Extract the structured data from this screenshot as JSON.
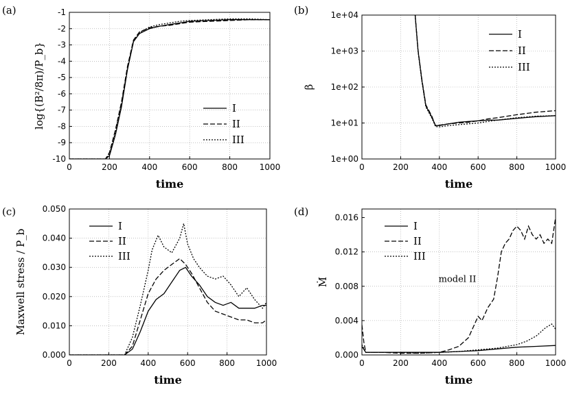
{
  "chart_data": [
    {
      "panel": "(a)",
      "type": "line",
      "xlabel": "time",
      "ylabel": "log{(B²/8π)/P_b}",
      "xlim": [
        0,
        1000
      ],
      "ylim": [
        -10,
        -1
      ],
      "xticks": [
        "0",
        "200",
        "400",
        "600",
        "800",
        "1000"
      ],
      "yticks": [
        "-10",
        "-9",
        "-8",
        "-7",
        "-6",
        "-5",
        "-4",
        "-3",
        "-2",
        "-1"
      ],
      "grid": true,
      "legend": "right",
      "series": [
        {
          "name": "I",
          "dash": "solid",
          "x": [
            0,
            150,
            180,
            200,
            230,
            260,
            290,
            320,
            350,
            400,
            450,
            500,
            550,
            600,
            700,
            800,
            900,
            1000
          ],
          "y": [
            -10,
            -10,
            -10,
            -9.8,
            -8.5,
            -6.8,
            -4.5,
            -2.8,
            -2.3,
            -2.0,
            -1.85,
            -1.75,
            -1.65,
            -1.55,
            -1.5,
            -1.45,
            -1.45,
            -1.45
          ]
        },
        {
          "name": "II",
          "dash": "dash",
          "x": [
            0,
            150,
            180,
            200,
            230,
            260,
            290,
            320,
            350,
            400,
            450,
            500,
            550,
            600,
            700,
            800,
            900,
            1000
          ],
          "y": [
            -10,
            -10,
            -10,
            -9.6,
            -8.2,
            -6.5,
            -4.3,
            -2.7,
            -2.2,
            -1.95,
            -1.85,
            -1.8,
            -1.7,
            -1.6,
            -1.55,
            -1.5,
            -1.45,
            -1.45
          ]
        },
        {
          "name": "III",
          "dash": "dot",
          "x": [
            0,
            150,
            180,
            200,
            230,
            260,
            290,
            320,
            350,
            400,
            450,
            500,
            550,
            600,
            700,
            800,
            900,
            1000
          ],
          "y": [
            -10,
            -10,
            -10,
            -9.7,
            -8.3,
            -6.6,
            -4.4,
            -2.75,
            -2.25,
            -1.9,
            -1.75,
            -1.65,
            -1.55,
            -1.5,
            -1.45,
            -1.4,
            -1.4,
            -1.45
          ]
        }
      ]
    },
    {
      "panel": "(b)",
      "type": "line",
      "yscale": "log",
      "xlabel": "time",
      "ylabel": "β",
      "xlim": [
        0,
        1000
      ],
      "ylim": [
        1,
        10000
      ],
      "xticks": [
        "0",
        "200",
        "400",
        "600",
        "800",
        "1000"
      ],
      "yticks": [
        "1e+00",
        "1e+01",
        "1e+02",
        "1e+03",
        "1e+04"
      ],
      "grid": true,
      "legend": "top-right",
      "series": [
        {
          "name": "I",
          "dash": "solid",
          "x": [
            275,
            290,
            310,
            330,
            360,
            380,
            400,
            450,
            500,
            550,
            600,
            650,
            700,
            800,
            900,
            1000
          ],
          "y": [
            10000,
            1000,
            150,
            30,
            15,
            8.5,
            8.5,
            9.5,
            10.5,
            11,
            11.5,
            12,
            12,
            13.5,
            15,
            16
          ]
        },
        {
          "name": "II",
          "dash": "dash",
          "x": [
            275,
            290,
            310,
            330,
            360,
            380,
            400,
            450,
            500,
            550,
            600,
            650,
            700,
            800,
            900,
            1000
          ],
          "y": [
            10000,
            1050,
            160,
            32,
            16,
            8.3,
            8.7,
            9.5,
            10,
            10.5,
            11.5,
            13,
            14,
            17,
            20,
            22
          ]
        },
        {
          "name": "III",
          "dash": "dot",
          "x": [
            275,
            290,
            310,
            330,
            360,
            380,
            400,
            450,
            500,
            550,
            600,
            650,
            700,
            800,
            900,
            1000
          ],
          "y": [
            10000,
            950,
            140,
            28,
            14,
            8,
            7.8,
            8.5,
            9,
            9.5,
            10,
            11,
            12,
            14,
            15.5,
            16
          ]
        }
      ]
    },
    {
      "panel": "(c)",
      "type": "line",
      "xlabel": "time",
      "ylabel": "Maxwell stress / P_b",
      "xlim": [
        0,
        1000
      ],
      "ylim": [
        0,
        0.05
      ],
      "xticks": [
        "0",
        "200",
        "400",
        "600",
        "800",
        "1000"
      ],
      "yticks": [
        "0.000",
        "0.010",
        "0.020",
        "0.030",
        "0.040",
        "0.050"
      ],
      "grid": true,
      "legend": "top-left",
      "series": [
        {
          "name": "I",
          "dash": "solid",
          "x": [
            0,
            280,
            320,
            360,
            400,
            440,
            480,
            520,
            560,
            590,
            620,
            660,
            700,
            740,
            780,
            820,
            860,
            900,
            940,
            980,
            1000
          ],
          "y": [
            0,
            0,
            0.002,
            0.008,
            0.015,
            0.019,
            0.021,
            0.025,
            0.029,
            0.03,
            0.027,
            0.024,
            0.02,
            0.018,
            0.017,
            0.018,
            0.016,
            0.016,
            0.016,
            0.017,
            0.017
          ]
        },
        {
          "name": "II",
          "dash": "dash",
          "x": [
            0,
            280,
            320,
            360,
            400,
            440,
            480,
            520,
            560,
            590,
            620,
            660,
            700,
            740,
            780,
            820,
            860,
            900,
            940,
            980,
            1000
          ],
          "y": [
            0,
            0,
            0.003,
            0.012,
            0.021,
            0.026,
            0.029,
            0.031,
            0.033,
            0.031,
            0.028,
            0.023,
            0.018,
            0.015,
            0.014,
            0.013,
            0.012,
            0.012,
            0.011,
            0.011,
            0.012
          ]
        },
        {
          "name": "III",
          "dash": "dot",
          "x": [
            0,
            280,
            320,
            360,
            400,
            420,
            450,
            480,
            520,
            560,
            580,
            600,
            630,
            660,
            700,
            740,
            780,
            820,
            860,
            900,
            940,
            980,
            1000
          ],
          "y": [
            0,
            0,
            0.006,
            0.017,
            0.029,
            0.036,
            0.041,
            0.037,
            0.035,
            0.04,
            0.045,
            0.038,
            0.033,
            0.03,
            0.027,
            0.026,
            0.027,
            0.024,
            0.02,
            0.023,
            0.019,
            0.016,
            0.018
          ]
        }
      ]
    },
    {
      "panel": "(d)",
      "type": "line",
      "xlabel": "time",
      "ylabel": "Ṁ",
      "xlim": [
        0,
        1000
      ],
      "ylim": [
        0,
        0.017
      ],
      "xticks": [
        "0",
        "200",
        "400",
        "600",
        "800",
        "1000"
      ],
      "yticks": [
        "0.000",
        "0.004",
        "0.008",
        "0.012",
        "0.016"
      ],
      "grid": true,
      "legend": "top-left",
      "annotations": [
        {
          "text": "model II",
          "x": 590,
          "y": 0.0085
        }
      ],
      "series": [
        {
          "name": "I",
          "dash": "solid",
          "x": [
            0,
            20,
            100,
            200,
            300,
            400,
            500,
            600,
            700,
            800,
            900,
            1000
          ],
          "y": [
            0.001,
            0.0003,
            0.0003,
            0.0003,
            0.0003,
            0.0003,
            0.0004,
            0.0005,
            0.0007,
            0.0009,
            0.001,
            0.0011
          ]
        },
        {
          "name": "II",
          "dash": "dash",
          "x": [
            0,
            10,
            20,
            100,
            200,
            300,
            400,
            450,
            500,
            550,
            580,
            600,
            620,
            650,
            680,
            700,
            720,
            740,
            760,
            780,
            800,
            820,
            840,
            860,
            880,
            900,
            920,
            940,
            960,
            980,
            1000
          ],
          "y": [
            0.0035,
            0.0015,
            0.0003,
            0.0003,
            0.0002,
            0.0002,
            0.0003,
            0.0006,
            0.001,
            0.002,
            0.0035,
            0.0045,
            0.004,
            0.0055,
            0.0065,
            0.009,
            0.012,
            0.013,
            0.0135,
            0.0145,
            0.015,
            0.0145,
            0.0135,
            0.015,
            0.014,
            0.0135,
            0.014,
            0.013,
            0.0135,
            0.013,
            0.016
          ]
        },
        {
          "name": "III",
          "dash": "dot",
          "x": [
            0,
            20,
            100,
            200,
            300,
            400,
            500,
            600,
            700,
            800,
            850,
            900,
            950,
            980,
            1000
          ],
          "y": [
            0.0012,
            0.0003,
            0.0003,
            0.0003,
            0.0002,
            0.0003,
            0.0004,
            0.0006,
            0.0008,
            0.0012,
            0.0016,
            0.0022,
            0.0032,
            0.0036,
            0.003
          ]
        }
      ]
    }
  ]
}
